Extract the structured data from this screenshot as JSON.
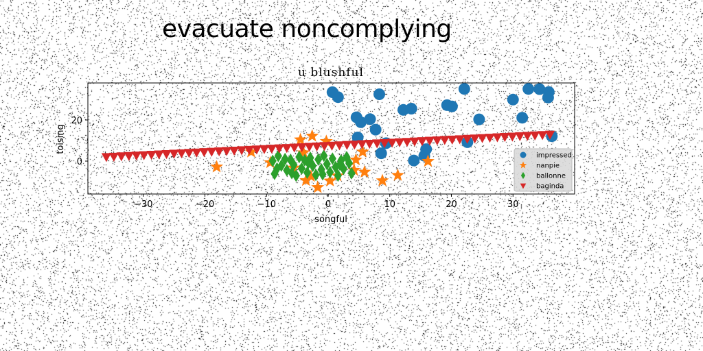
{
  "figure": {
    "title": "evacuate noncomplying"
  },
  "chart_data": {
    "type": "scatter",
    "title": "u blushful",
    "xlabel": "songful",
    "ylabel": "toising",
    "xlim": [
      -39,
      40
    ],
    "ylim": [
      -16,
      38
    ],
    "xticks": [
      -30,
      -20,
      -10,
      0,
      10,
      20,
      30
    ],
    "yticks": [
      0,
      20
    ],
    "grid": false,
    "legend": {
      "position": "lower-right"
    },
    "series": [
      {
        "name": "impressed",
        "marker": "circle",
        "color": "#1f77b4",
        "points": [
          [
            0.7,
            33.5
          ],
          [
            1.6,
            31.1
          ],
          [
            4.6,
            21.3
          ],
          [
            5.3,
            18.9
          ],
          [
            6.8,
            20.4
          ],
          [
            7.7,
            15.3
          ],
          [
            8.3,
            32.5
          ],
          [
            4.8,
            11.5
          ],
          [
            8.6,
            3.8
          ],
          [
            9.4,
            8.7
          ],
          [
            12.2,
            24.9
          ],
          [
            13.5,
            25.5
          ],
          [
            13.9,
            0.3
          ],
          [
            15.6,
            2.6
          ],
          [
            15.9,
            5.8
          ],
          [
            19.3,
            27.2
          ],
          [
            20.1,
            26.6
          ],
          [
            22.1,
            35.1
          ],
          [
            22.6,
            9.2
          ],
          [
            24.5,
            20.3
          ],
          [
            30.0,
            29.9
          ],
          [
            31.5,
            21.1
          ],
          [
            32.5,
            35.1
          ],
          [
            34.3,
            35.0
          ],
          [
            35.8,
            33.6
          ],
          [
            35.7,
            30.9
          ],
          [
            36.3,
            12.1
          ]
        ]
      },
      {
        "name": "nanpie",
        "marker": "star",
        "color": "#ff7f0e",
        "points": [
          [
            -18.1,
            -2.8
          ],
          [
            -12.5,
            4.5
          ],
          [
            -4.5,
            10.4
          ],
          [
            -2.6,
            12.2
          ],
          [
            -0.3,
            9.6
          ],
          [
            -4.0,
            4.1
          ],
          [
            -2.8,
            -7.4
          ],
          [
            -5.6,
            -3.3
          ],
          [
            -3.6,
            -9.4
          ],
          [
            -1.7,
            -12.8
          ],
          [
            0.3,
            -9.6
          ],
          [
            1.5,
            -7.1
          ],
          [
            4.2,
            -4.4
          ],
          [
            5.9,
            -5.3
          ],
          [
            8.8,
            -9.5
          ],
          [
            11.3,
            -6.9
          ],
          [
            16.2,
            -0.1
          ],
          [
            4.5,
            0.6
          ],
          [
            5.6,
            4.5
          ],
          [
            -9.4,
            -0.7
          ]
        ]
      },
      {
        "name": "ballonne",
        "marker": "diamond",
        "color": "#2ca02c",
        "points": [
          [
            -9.0,
            0.1
          ],
          [
            -8.7,
            -6.2
          ],
          [
            -8.1,
            2.5
          ],
          [
            -7.6,
            -2.2
          ],
          [
            -7.0,
            1.0
          ],
          [
            -6.7,
            -4.5
          ],
          [
            -6.1,
            0.6
          ],
          [
            -5.6,
            -1.8
          ],
          [
            -5.2,
            -7.1
          ],
          [
            -4.7,
            2.0
          ],
          [
            -4.3,
            -3.6
          ],
          [
            -3.8,
            0.4
          ],
          [
            -3.4,
            -5.6
          ],
          [
            -2.9,
            1.6
          ],
          [
            -2.5,
            -2.3
          ],
          [
            -2.0,
            -6.7
          ],
          [
            -1.6,
            0.8
          ],
          [
            -1.1,
            -4.1
          ],
          [
            -0.7,
            2.6
          ],
          [
            -0.2,
            -1.4
          ],
          [
            0.3,
            -5.4
          ],
          [
            0.7,
            1.2
          ],
          [
            1.2,
            -2.9
          ],
          [
            1.6,
            -7.0
          ],
          [
            2.1,
            0.3
          ],
          [
            2.5,
            -3.8
          ],
          [
            3.0,
            1.9
          ],
          [
            3.4,
            -1.0
          ],
          [
            3.8,
            -5.9
          ],
          [
            -8.3,
            -3.6
          ],
          [
            -5.9,
            -5.8
          ],
          [
            -3.2,
            -0.9
          ],
          [
            -0.9,
            -6.4
          ],
          [
            1.9,
            -1.7
          ]
        ]
      },
      {
        "name": "baginda",
        "marker": "triangle-down",
        "color": "#d62728",
        "line": {
          "x0": -36,
          "x1": 36,
          "y0": 2.0,
          "y1": 12.9,
          "count": 60
        }
      }
    ]
  }
}
